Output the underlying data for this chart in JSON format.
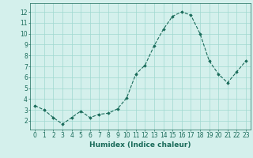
{
  "x": [
    0,
    1,
    2,
    3,
    4,
    5,
    6,
    7,
    8,
    9,
    10,
    11,
    12,
    13,
    14,
    15,
    16,
    17,
    18,
    19,
    20,
    21,
    22,
    23
  ],
  "y": [
    3.4,
    3.0,
    2.3,
    1.7,
    2.3,
    2.9,
    2.3,
    2.6,
    2.7,
    3.1,
    4.1,
    6.3,
    7.1,
    8.9,
    10.4,
    11.6,
    12.0,
    11.7,
    10.0,
    7.5,
    6.3,
    5.5,
    6.5,
    7.5
  ],
  "line_color": "#1a6b5a",
  "marker": "D",
  "marker_size": 1.8,
  "bg_color": "#d4f0ec",
  "grid_color": "#a0d8d0",
  "xlabel": "Humidex (Indice chaleur)",
  "xlim": [
    -0.5,
    23.5
  ],
  "ylim": [
    1.2,
    12.8
  ],
  "yticks": [
    2,
    3,
    4,
    5,
    6,
    7,
    8,
    9,
    10,
    11,
    12
  ],
  "xticks": [
    0,
    1,
    2,
    3,
    4,
    5,
    6,
    7,
    8,
    9,
    10,
    11,
    12,
    13,
    14,
    15,
    16,
    17,
    18,
    19,
    20,
    21,
    22,
    23
  ],
  "tick_color": "#1a6b5a",
  "label_fontsize": 6.5,
  "tick_fontsize": 5.5
}
